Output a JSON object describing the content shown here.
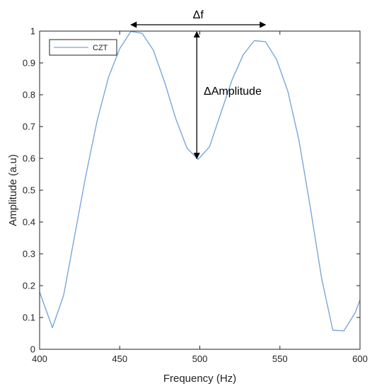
{
  "chart_data": {
    "type": "line",
    "xlabel": "Frequency (Hz)",
    "ylabel": "Amplitude (a.u)",
    "xlim": [
      400,
      600
    ],
    "ylim": [
      0,
      1
    ],
    "xticks": [
      "400",
      "450",
      "500",
      "550",
      "600"
    ],
    "yticks": [
      "0",
      "0.1",
      "0.2",
      "0.3",
      "0.4",
      "0.5",
      "0.6",
      "0.7",
      "0.8",
      "0.9",
      "1"
    ],
    "grid": false,
    "legend_position": "top-left",
    "series": [
      {
        "name": "CZT",
        "color": "#7aa7d9",
        "x": [
          400,
          408,
          415,
          422,
          429,
          436,
          443,
          450,
          457,
          464,
          471,
          478,
          485,
          492,
          499,
          506,
          513,
          520,
          527,
          534,
          541,
          548,
          555,
          562,
          569,
          576,
          583,
          590,
          597,
          600
        ],
        "y": [
          0.18,
          0.068,
          0.17,
          0.36,
          0.55,
          0.72,
          0.855,
          0.945,
          0.999,
          0.993,
          0.94,
          0.84,
          0.725,
          0.632,
          0.597,
          0.636,
          0.74,
          0.845,
          0.925,
          0.97,
          0.967,
          0.91,
          0.81,
          0.655,
          0.445,
          0.225,
          0.06,
          0.058,
          0.115,
          0.155
        ]
      }
    ],
    "annotations": {
      "delta_f": {
        "label": "Δf",
        "x_from": 457,
        "x_to": 541,
        "y": 1.0
      },
      "delta_amplitude": {
        "label": "ΔAmplitude",
        "x": 499,
        "y_from": 1.0,
        "y_to": 0.597
      }
    }
  }
}
